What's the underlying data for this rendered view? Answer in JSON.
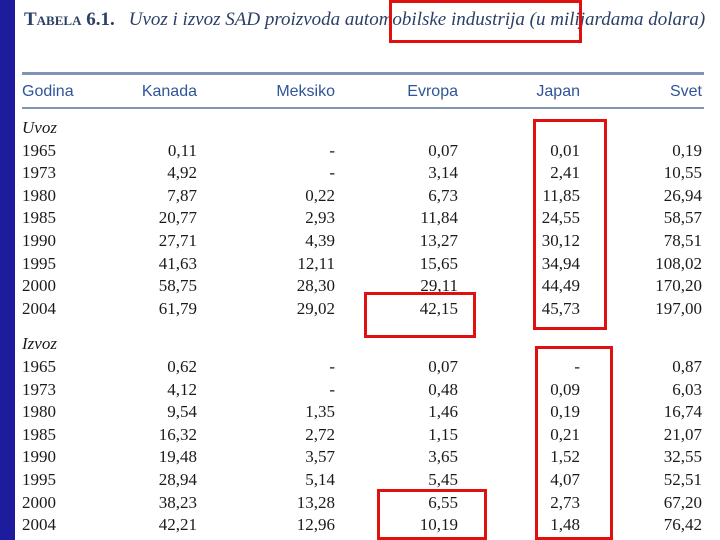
{
  "table": {
    "label": "Tabela 6.1.",
    "caption": "Uvoz i izvoz SAD proizvoda automobilske industrija (u milijardama dolara)",
    "columns": [
      "Godina",
      "Kanada",
      "Meksiko",
      "Evropa",
      "Japan",
      "Svet"
    ],
    "sections": [
      {
        "label": "Uvoz",
        "rows": [
          [
            "1965",
            "0,11",
            "-",
            "0,07",
            "0,01",
            "0,19"
          ],
          [
            "1973",
            "4,92",
            "-",
            "3,14",
            "2,41",
            "10,55"
          ],
          [
            "1980",
            "7,87",
            "0,22",
            "6,73",
            "11,85",
            "26,94"
          ],
          [
            "1985",
            "20,77",
            "2,93",
            "11,84",
            "24,55",
            "58,57"
          ],
          [
            "1990",
            "27,71",
            "4,39",
            "13,27",
            "30,12",
            "78,51"
          ],
          [
            "1995",
            "41,63",
            "12,11",
            "15,65",
            "34,94",
            "108,02"
          ],
          [
            "2000",
            "58,75",
            "28,30",
            "29,11",
            "44,49",
            "170,20"
          ],
          [
            "2004",
            "61,79",
            "29,02",
            "42,15",
            "45,73",
            "197,00"
          ]
        ]
      },
      {
        "label": "Izvoz",
        "rows": [
          [
            "1965",
            "0,62",
            "-",
            "0,07",
            "-",
            "0,87"
          ],
          [
            "1973",
            "4,12",
            "-",
            "0,48",
            "0,09",
            "6,03"
          ],
          [
            "1980",
            "9,54",
            "1,35",
            "1,46",
            "0,19",
            "16,74"
          ],
          [
            "1985",
            "16,32",
            "2,72",
            "1,15",
            "0,21",
            "21,07"
          ],
          [
            "1990",
            "19,48",
            "3,57",
            "3,65",
            "1,52",
            "32,55"
          ],
          [
            "1995",
            "28,94",
            "5,14",
            "5,45",
            "4,07",
            "52,51"
          ],
          [
            "2000",
            "38,23",
            "13,28",
            "6,55",
            "2,73",
            "67,20"
          ],
          [
            "2004",
            "42,21",
            "12,96",
            "10,19",
            "1,48",
            "76,42"
          ]
        ]
      }
    ]
  }
}
